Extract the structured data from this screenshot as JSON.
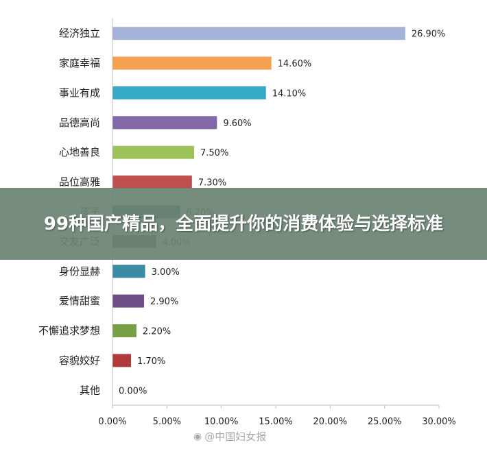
{
  "overlay": {
    "title": "99种国产精品，全面提升你的消费体验与选择标准"
  },
  "watermark": {
    "icon": "weibo-icon",
    "text": "@中国妇女报"
  },
  "chart_data": {
    "type": "bar",
    "orientation": "horizontal",
    "title": "",
    "xlabel": "",
    "ylabel": "",
    "xlim": [
      0,
      30
    ],
    "ticks": [
      "0.00%",
      "5.00%",
      "10.00%",
      "15.00%",
      "20.00%",
      "25.00%",
      "30.00%"
    ],
    "tick_values": [
      0,
      5,
      10,
      15,
      20,
      25,
      30
    ],
    "grid": false,
    "categories": [
      "经济独立",
      "家庭幸福",
      "事业有成",
      "品德高尚",
      "心地善良",
      "品位高雅",
      "孩子",
      "交友广泛",
      "身份显赫",
      "爱情甜蜜",
      "不懈追求梦想",
      "容貌姣好",
      "其他"
    ],
    "values": [
      26.9,
      14.6,
      14.1,
      9.6,
      7.5,
      7.3,
      6.2,
      4.0,
      3.0,
      2.9,
      2.2,
      1.7,
      0.0
    ],
    "value_labels": [
      "26.90%",
      "14.60%",
      "14.10%",
      "9.60%",
      "7.50%",
      "7.30%",
      "6.20%",
      "4.00%",
      "3.00%",
      "2.90%",
      "2.20%",
      "1.70%",
      "0.00%"
    ],
    "colors": [
      "#a5b3d8",
      "#f5a050",
      "#36a9c7",
      "#8368a8",
      "#9cc35a",
      "#c0504d",
      "#3a5d8c",
      "#675b3f",
      "#3b8aa6",
      "#6e4d87",
      "#77a044",
      "#b03a3a",
      "#9aa9c9"
    ]
  }
}
